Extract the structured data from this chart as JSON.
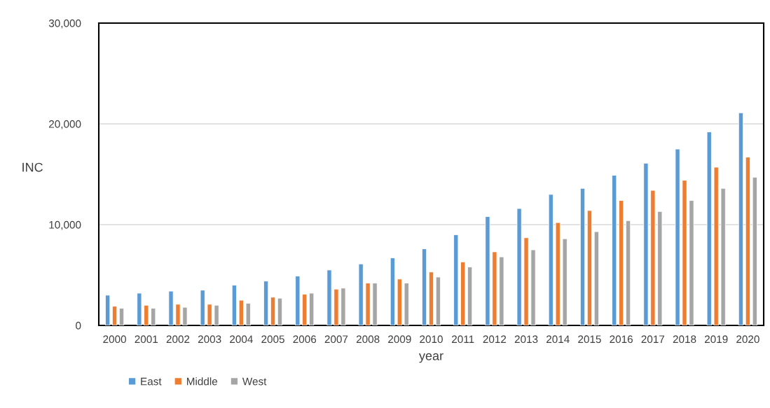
{
  "chart_data": {
    "type": "bar",
    "xlabel": "year",
    "ylabel": "INC",
    "categories": [
      "2000",
      "2001",
      "2002",
      "2003",
      "2004",
      "2005",
      "2006",
      "2007",
      "2008",
      "2009",
      "2010",
      "2011",
      "2012",
      "2013",
      "2014",
      "2015",
      "2016",
      "2017",
      "2018",
      "2019",
      "2020"
    ],
    "series": [
      {
        "name": "East",
        "color": "#5b9bd5",
        "values": [
          3000,
          3200,
          3400,
          3500,
          4000,
          4400,
          4900,
          5500,
          6100,
          6700,
          7600,
          9000,
          10800,
          11600,
          13000,
          13600,
          14900,
          16100,
          17500,
          19200,
          21100
        ]
      },
      {
        "name": "Middle",
        "color": "#ed7d31",
        "values": [
          1900,
          2000,
          2100,
          2100,
          2500,
          2800,
          3100,
          3600,
          4200,
          4600,
          5300,
          6300,
          7300,
          8700,
          10200,
          11400,
          12400,
          13400,
          14400,
          15700,
          16700
        ]
      },
      {
        "name": "West",
        "color": "#a5a5a5",
        "values": [
          1700,
          1700,
          1800,
          2000,
          2200,
          2700,
          3200,
          3700,
          4200,
          4200,
          4800,
          5800,
          6800,
          7500,
          8600,
          9300,
          10400,
          11300,
          12400,
          13600,
          14700
        ]
      }
    ],
    "ylim": [
      0,
      30000
    ],
    "yticks": [
      {
        "value": 0,
        "label": "0"
      },
      {
        "value": 10000,
        "label": "10,000"
      },
      {
        "value": 20000,
        "label": "20,000"
      },
      {
        "value": 30000,
        "label": "30,000"
      }
    ],
    "grid": "y",
    "legend": "bottom left"
  }
}
